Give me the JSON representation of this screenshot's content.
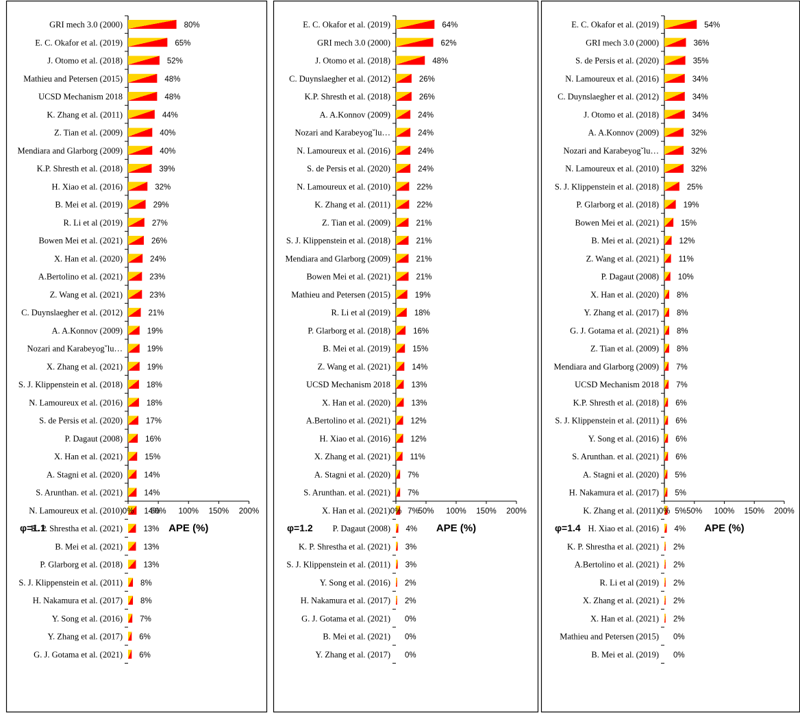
{
  "chart_data": [
    {
      "type": "bar",
      "panel_label": "φ=1.1",
      "xlabel": "APE (%)",
      "xlim": [
        0,
        200
      ],
      "xticks": [
        "0%",
        "50%",
        "100%",
        "150%",
        "200%"
      ],
      "categories": [
        "GRI mech 3.0 (2000)",
        "E. C. Okafor et al. (2019)",
        "J. Otomo et al. (2018)",
        "Mathieu and Petersen (2015)",
        "UCSD Mechanism 2018",
        "K. Zhang et al. (2011)",
        "Z. Tian et al. (2009)",
        "Mendiara and Glarborg (2009)",
        "K.P. Shresth et al. (2018)",
        "H. Xiao et al. (2016)",
        "B. Mei et al. (2019)",
        "R. Li et al (2019)",
        "Bowen Mei et al. (2021)",
        "X. Han et al. (2020)",
        "A.Bertolino et al. (2021)",
        "Z. Wang et al. (2021)",
        "C. Duynslaegher et al. (2012)",
        "A. A.Konnov (2009)",
        "Nozari and Karabeyogˇlu…",
        "X. Zhang et al. (2021)",
        "S. J. Klippenstein et al. (2018)",
        "N. Lamoureux et al. (2016)",
        "S. de Persis et al. (2020)",
        "P. Dagaut (2008)",
        "X. Han et al. (2021)",
        "A. Stagni et al. (2020)",
        "S. Arunthan. et al. (2021)",
        "N. Lamoureux et al. (2010)",
        "K. P. Shrestha et al. (2021)",
        "B. Mei et al. (2021)",
        "P. Glarborg et al. (2018)",
        "S. J. Klippenstein et al. (2011)",
        "H. Nakamura et al. (2017)",
        "Y. Song et al. (2016)",
        "Y. Zhang et al. (2017)",
        "G. J. Gotama et al. (2021)"
      ],
      "values": [
        80,
        65,
        52,
        48,
        48,
        44,
        40,
        40,
        39,
        32,
        29,
        27,
        26,
        24,
        23,
        23,
        21,
        19,
        19,
        19,
        18,
        18,
        17,
        16,
        15,
        14,
        14,
        14,
        13,
        13,
        13,
        8,
        8,
        7,
        6,
        6
      ],
      "labels": [
        "80%",
        "65%",
        "52%",
        "48%",
        "48%",
        "44%",
        "40%",
        "40%",
        "39%",
        "32%",
        "29%",
        "27%",
        "26%",
        "24%",
        "23%",
        "23%",
        "21%",
        "19%",
        "19%",
        "19%",
        "18%",
        "18%",
        "17%",
        "16%",
        "15%",
        "14%",
        "14%",
        "14%",
        "13%",
        "13%",
        "13%",
        "8%",
        "8%",
        "7%",
        "6%",
        "6%"
      ]
    },
    {
      "type": "bar",
      "panel_label": "φ=1.2",
      "xlabel": "APE (%)",
      "xlim": [
        0,
        200
      ],
      "xticks": [
        "0%",
        "50%",
        "100%",
        "150%",
        "200%"
      ],
      "categories": [
        "E. C. Okafor et al. (2019)",
        "GRI mech 3.0 (2000)",
        "J. Otomo et al. (2018)",
        "C. Duynslaegher et al. (2012)",
        "K.P. Shresth et al. (2018)",
        "A. A.Konnov (2009)",
        "Nozari and Karabeyogˇlu…",
        "N. Lamoureux et al. (2016)",
        "S. de Persis et al. (2020)",
        "N. Lamoureux et al. (2010)",
        "K. Zhang et al. (2011)",
        "Z. Tian et al. (2009)",
        "S. J. Klippenstein et al. (2018)",
        "Mendiara and Glarborg (2009)",
        "Bowen Mei et al. (2021)",
        "Mathieu and Petersen (2015)",
        "R. Li et al (2019)",
        "P. Glarborg et al. (2018)",
        "B. Mei et al. (2019)",
        "Z. Wang et al. (2021)",
        "UCSD Mechanism 2018",
        "X. Han et al. (2020)",
        "A.Bertolino et al. (2021)",
        "H. Xiao et al. (2016)",
        "X. Zhang et al. (2021)",
        "A. Stagni et al. (2020)",
        "S. Arunthan. et al. (2021)",
        "X. Han et al. (2021)",
        "P. Dagaut (2008)",
        "K. P. Shrestha et al. (2021)",
        "S. J. Klippenstein et al. (2011)",
        "Y. Song et al. (2016)",
        "H. Nakamura et al. (2017)",
        "G. J. Gotama et al. (2021)",
        "B. Mei et al. (2021)",
        "Y. Zhang et al. (2017)"
      ],
      "values": [
        64,
        62,
        48,
        26,
        26,
        24,
        24,
        24,
        24,
        22,
        22,
        21,
        21,
        21,
        21,
        19,
        18,
        16,
        15,
        14,
        13,
        13,
        12,
        12,
        11,
        7,
        7,
        7,
        4,
        3,
        3,
        2,
        2,
        0,
        0,
        0
      ],
      "labels": [
        "64%",
        "62%",
        "48%",
        "26%",
        "26%",
        "24%",
        "24%",
        "24%",
        "24%",
        "22%",
        "22%",
        "21%",
        "21%",
        "21%",
        "21%",
        "19%",
        "18%",
        "16%",
        "15%",
        "14%",
        "13%",
        "13%",
        "12%",
        "12%",
        "11%",
        "7%",
        "7%",
        "7%",
        "4%",
        "3%",
        "3%",
        "2%",
        "2%",
        "0%",
        "0%",
        "0%"
      ]
    },
    {
      "type": "bar",
      "panel_label": "φ=1.4",
      "xlabel": "APE (%)",
      "xlim": [
        0,
        200
      ],
      "xticks": [
        "0%",
        "50%",
        "100%",
        "150%",
        "200%"
      ],
      "categories": [
        "E. C. Okafor et al. (2019)",
        "GRI mech 3.0 (2000)",
        "S. de Persis et al. (2020)",
        "N. Lamoureux et al. (2016)",
        "C. Duynslaegher et al. (2012)",
        "J. Otomo et al. (2018)",
        "A. A.Konnov (2009)",
        "Nozari and Karabeyogˇlu…",
        "N. Lamoureux et al. (2010)",
        "S. J. Klippenstein et al. (2018)",
        "P. Glarborg et al. (2018)",
        "Bowen Mei et al. (2021)",
        "B. Mei et al. (2021)",
        "Z. Wang et al. (2021)",
        "P. Dagaut (2008)",
        "X. Han et al. (2020)",
        "Y. Zhang et al. (2017)",
        "G. J. Gotama et al. (2021)",
        "Z. Tian et al. (2009)",
        "Mendiara and Glarborg (2009)",
        "UCSD Mechanism 2018",
        "K.P. Shresth et al. (2018)",
        "S. J. Klippenstein et al. (2011)",
        "Y. Song et al. (2016)",
        "S. Arunthan. et al. (2021)",
        "A. Stagni et al. (2020)",
        "H. Nakamura et al. (2017)",
        "K. Zhang et al. (2011)",
        "H. Xiao et al. (2016)",
        "K. P. Shrestha et al. (2021)",
        "A.Bertolino et al. (2021)",
        "R. Li et al (2019)",
        "X. Zhang et al. (2021)",
        "X. Han et al. (2021)",
        "Mathieu and Petersen (2015)",
        "B. Mei et al. (2019)"
      ],
      "values": [
        54,
        36,
        35,
        34,
        34,
        34,
        32,
        32,
        32,
        25,
        19,
        15,
        12,
        11,
        10,
        8,
        8,
        8,
        8,
        7,
        7,
        6,
        6,
        6,
        6,
        5,
        5,
        5,
        4,
        2,
        2,
        2,
        2,
        2,
        0,
        0
      ],
      "labels": [
        "54%",
        "36%",
        "35%",
        "34%",
        "34%",
        "34%",
        "32%",
        "32%",
        "32%",
        "25%",
        "19%",
        "15%",
        "12%",
        "11%",
        "10%",
        "8%",
        "8%",
        "8%",
        "8%",
        "7%",
        "7%",
        "6%",
        "6%",
        "6%",
        "6%",
        "5%",
        "5%",
        "5%",
        "4%",
        "2%",
        "2%",
        "2%",
        "2%",
        "2%",
        "0%",
        "0%"
      ]
    }
  ],
  "colors": {
    "bar_light": "#ffd400",
    "bar_dark": "#ff0000",
    "axis": "#000000",
    "frame": "#000000"
  }
}
